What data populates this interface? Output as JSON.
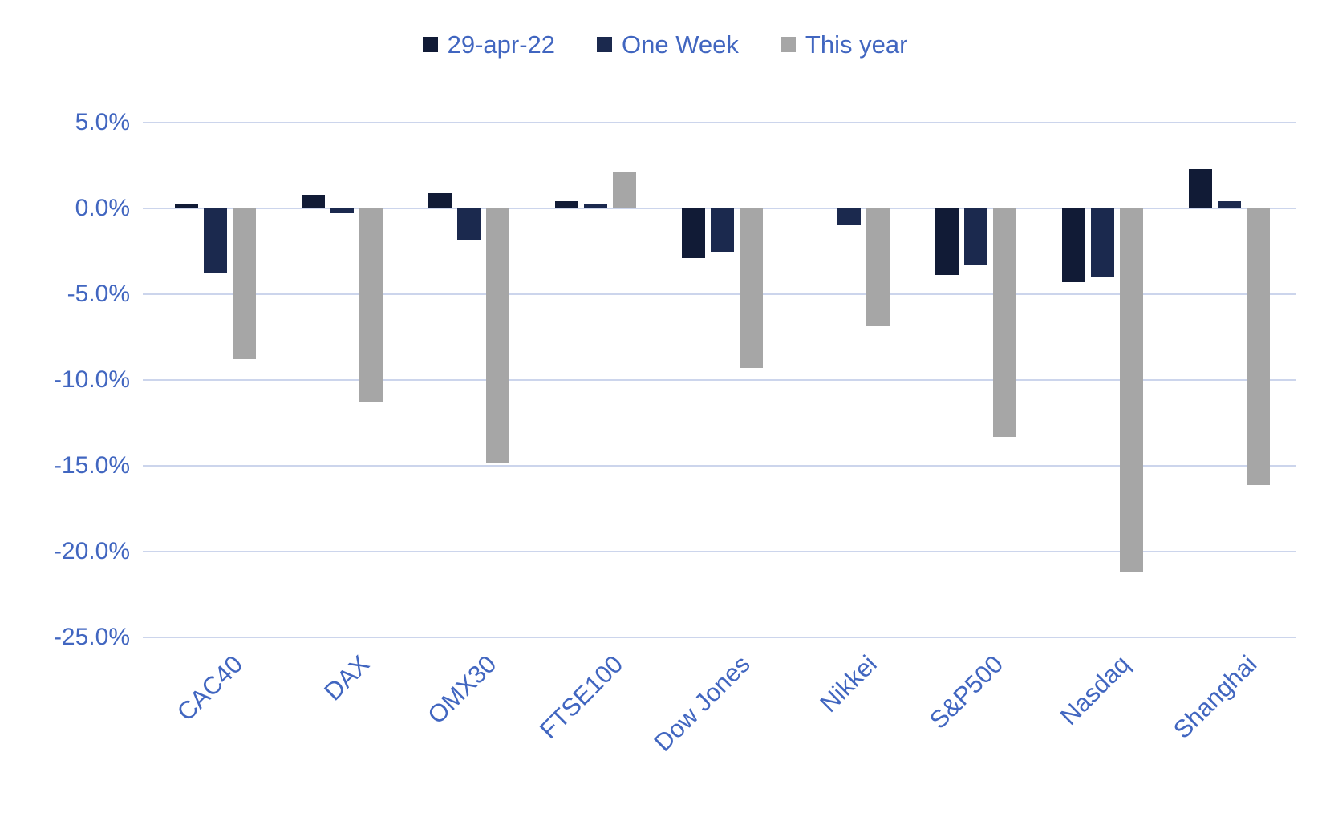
{
  "chart_data": {
    "type": "bar",
    "title": "",
    "categories": [
      "CAC40",
      "DAX",
      "OMX30",
      "FTSE100",
      "Dow Jones",
      "Nikkei",
      "S&P500",
      "Nasdaq",
      "Shanghai"
    ],
    "series": [
      {
        "name": "29-apr-22",
        "color": "#111b36",
        "values": [
          0.3,
          0.8,
          0.9,
          0.4,
          -2.9,
          0.0,
          -3.9,
          -4.3,
          2.3
        ]
      },
      {
        "name": "One Week",
        "color": "#1b294e",
        "values": [
          -3.8,
          -0.3,
          -1.8,
          0.3,
          -2.5,
          -1.0,
          -3.3,
          -4.0,
          0.4
        ]
      },
      {
        "name": "This year",
        "color": "#a6a6a6",
        "values": [
          -8.8,
          -11.3,
          -14.8,
          2.1,
          -9.3,
          -6.8,
          -13.3,
          -21.2,
          -16.1
        ]
      }
    ],
    "xlabel": "",
    "ylabel": "",
    "y_ticks": [
      "5.0%",
      "0.0%",
      "-5.0%",
      "-10.0%",
      "-15.0%",
      "-20.0%",
      "-25.0%"
    ],
    "ylim": [
      -25,
      5
    ],
    "y_tick_step": 5,
    "value_unit": "percent",
    "grid": true,
    "legend_position": "top-center"
  },
  "colors": {
    "axis_text": "#4166c0",
    "gridline": "#ccd5ec",
    "background": "#ffffff"
  }
}
